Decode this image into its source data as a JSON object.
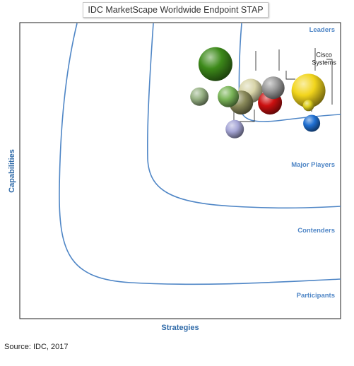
{
  "chart_data": {
    "type": "scatter",
    "title": "IDC MarketScape Worldwide Endpoint STAP",
    "xlabel": "Strategies",
    "ylabel": "Capabilities",
    "categories_labels": [
      "Leaders",
      "Major Players",
      "Contenders",
      "Participants"
    ],
    "grid": false,
    "points": [
      {
        "label": "",
        "x": 0.61,
        "y": 0.86,
        "size": 24,
        "color": "#3d8a1a"
      },
      {
        "label": "",
        "x": 0.56,
        "y": 0.75,
        "size": 13,
        "color": "#97b284"
      },
      {
        "label": "",
        "x": 0.65,
        "y": 0.75,
        "size": 15,
        "color": "#7ab558"
      },
      {
        "label": "",
        "x": 0.72,
        "y": 0.77,
        "size": 17,
        "color": "#d8d4a8"
      },
      {
        "label": "",
        "x": 0.79,
        "y": 0.78,
        "size": 16,
        "color": "#9a9a9a"
      },
      {
        "label": "",
        "x": 0.69,
        "y": 0.73,
        "size": 17,
        "color": "#8a8a5a"
      },
      {
        "label": "",
        "x": 0.78,
        "y": 0.73,
        "size": 17,
        "color": "#cc1010"
      },
      {
        "label": "Cisco Systems",
        "x": 0.9,
        "y": 0.77,
        "size": 24,
        "color": "#f2d51c"
      },
      {
        "label": "",
        "x": 0.9,
        "y": 0.72,
        "size": 8,
        "color": "#dccd1c"
      },
      {
        "label": "",
        "x": 0.91,
        "y": 0.66,
        "size": 12,
        "color": "#1f6fd1"
      },
      {
        "label": "",
        "x": 0.67,
        "y": 0.64,
        "size": 13,
        "color": "#a6a6d6"
      }
    ]
  },
  "source": "Source: IDC, 2017"
}
